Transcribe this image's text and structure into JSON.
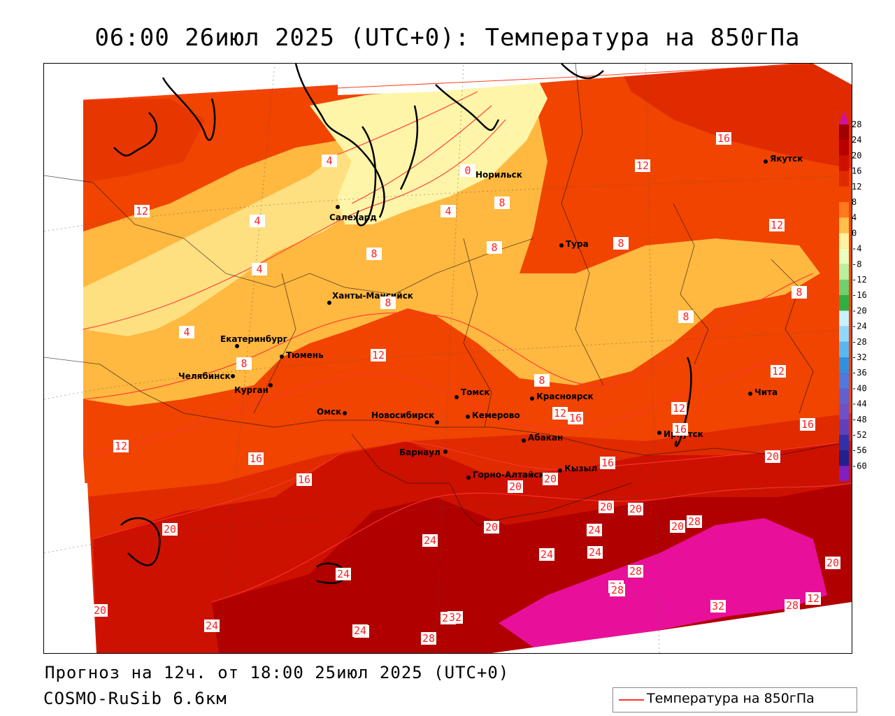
{
  "title": "06:00 26июл 2025 (UTC+0): Температура на 850гПа",
  "footer": {
    "forecast": "Прогноз на 12ч. от 18:00 25июл 2025 (UTC+0)",
    "model": "COSMO-RuSib 6.6км"
  },
  "legend": {
    "label": "Температура на 850гПа",
    "color": "#ff3333"
  },
  "colorbar": [
    {
      "label": "28",
      "color": "#a00000"
    },
    {
      "label": "24",
      "color": "#b80000"
    },
    {
      "label": "20",
      "color": "#cc1100"
    },
    {
      "label": "16",
      "color": "#e02a00"
    },
    {
      "label": "12",
      "color": "#f04400"
    },
    {
      "label": "8",
      "color": "#ff7a1a"
    },
    {
      "label": "4",
      "color": "#ffc04a"
    },
    {
      "label": "0",
      "color": "#fff2a0"
    },
    {
      "label": "-4",
      "color": "#e8ffc0"
    },
    {
      "label": "-8",
      "color": "#b8f0a0"
    },
    {
      "label": "-12",
      "color": "#70d070"
    },
    {
      "label": "-16",
      "color": "#30b040"
    },
    {
      "label": "-20",
      "color": "#c8f0ff"
    },
    {
      "label": "-24",
      "color": "#90d8ff"
    },
    {
      "label": "-28",
      "color": "#5ab8f0"
    },
    {
      "label": "-32",
      "color": "#3090e0"
    },
    {
      "label": "-36",
      "color": "#5078e0"
    },
    {
      "label": "-40",
      "color": "#6060d0"
    },
    {
      "label": "-44",
      "color": "#7050c8"
    },
    {
      "label": "-48",
      "color": "#6040b8"
    },
    {
      "label": "-52",
      "color": "#3030a8"
    },
    {
      "label": "-56",
      "color": "#202090"
    },
    {
      "label": "-60",
      "color": "#8020c0"
    }
  ],
  "colorbar_ends": {
    "top": "#d010a0",
    "bottom": "#a040e0"
  },
  "cities": [
    {
      "name": "Норильск"
    },
    {
      "name": "Якутск"
    },
    {
      "name": "Салехард"
    },
    {
      "name": "Тура"
    },
    {
      "name": "Ханты-Мансийск"
    },
    {
      "name": "Екатеринбург"
    },
    {
      "name": "Тюмень"
    },
    {
      "name": "Челябинск"
    },
    {
      "name": "Курган"
    },
    {
      "name": "Омск"
    },
    {
      "name": "Новосибирск"
    },
    {
      "name": "Томск"
    },
    {
      "name": "Кемерово"
    },
    {
      "name": "Красноярск"
    },
    {
      "name": "Барнаул"
    },
    {
      "name": "Абакан"
    },
    {
      "name": "Горно-Алтайск"
    },
    {
      "name": "Кызыл"
    },
    {
      "name": "Иркутск"
    },
    {
      "name": "Чита"
    }
  ],
  "contour_labels": [
    "16",
    "12",
    "12",
    "12",
    "4",
    "0",
    "8",
    "4",
    "4",
    "8",
    "8",
    "8",
    "4",
    "8",
    "8",
    "4",
    "8",
    "8",
    "12",
    "8",
    "12",
    "12",
    "16",
    "12",
    "16",
    "20",
    "12",
    "16",
    "16",
    "16",
    "12",
    "16",
    "20",
    "20",
    "20",
    "20",
    "24",
    "20",
    "24",
    "28",
    "16",
    "20",
    "24",
    "20",
    "24",
    "24",
    "28",
    "32",
    "24",
    "28",
    "20",
    "20",
    "28",
    "24",
    "32",
    "28",
    "24",
    "28",
    "24",
    "24"
  ]
}
